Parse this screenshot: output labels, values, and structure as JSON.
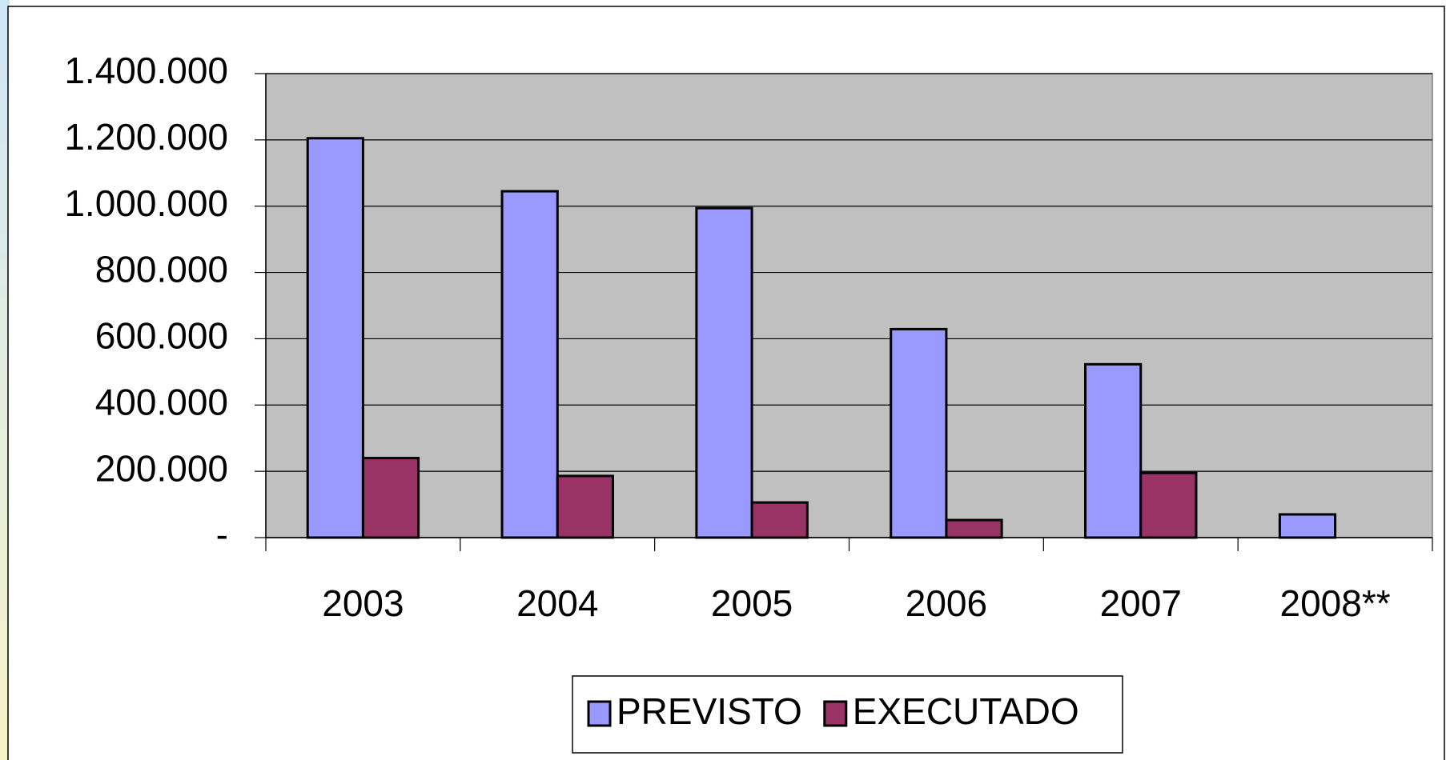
{
  "chart_data": {
    "type": "bar",
    "categories": [
      "2003",
      "2004",
      "2005",
      "2006",
      "2007",
      "2008**"
    ],
    "series": [
      {
        "name": "PREVISTO",
        "color": "#9999ff",
        "values": [
          1205000,
          1045000,
          994000,
          629000,
          523000,
          70000
        ]
      },
      {
        "name": "EXECUTADO",
        "color": "#993366",
        "values": [
          240000,
          186000,
          106000,
          53000,
          195000,
          null
        ]
      }
    ],
    "ylim": [
      0,
      1400000
    ],
    "yticks": [
      {
        "value": 0,
        "label": "-"
      },
      {
        "value": 200000,
        "label": "200.000"
      },
      {
        "value": 400000,
        "label": "400.000"
      },
      {
        "value": 600000,
        "label": "600.000"
      },
      {
        "value": 800000,
        "label": "800.000"
      },
      {
        "value": 1000000,
        "label": "1.000.000"
      },
      {
        "value": 1200000,
        "label": "1.200.000"
      },
      {
        "value": 1400000,
        "label": "1.400.000"
      }
    ],
    "grid": true,
    "legend": "bottom",
    "plot_background": "#c0c0c0"
  }
}
